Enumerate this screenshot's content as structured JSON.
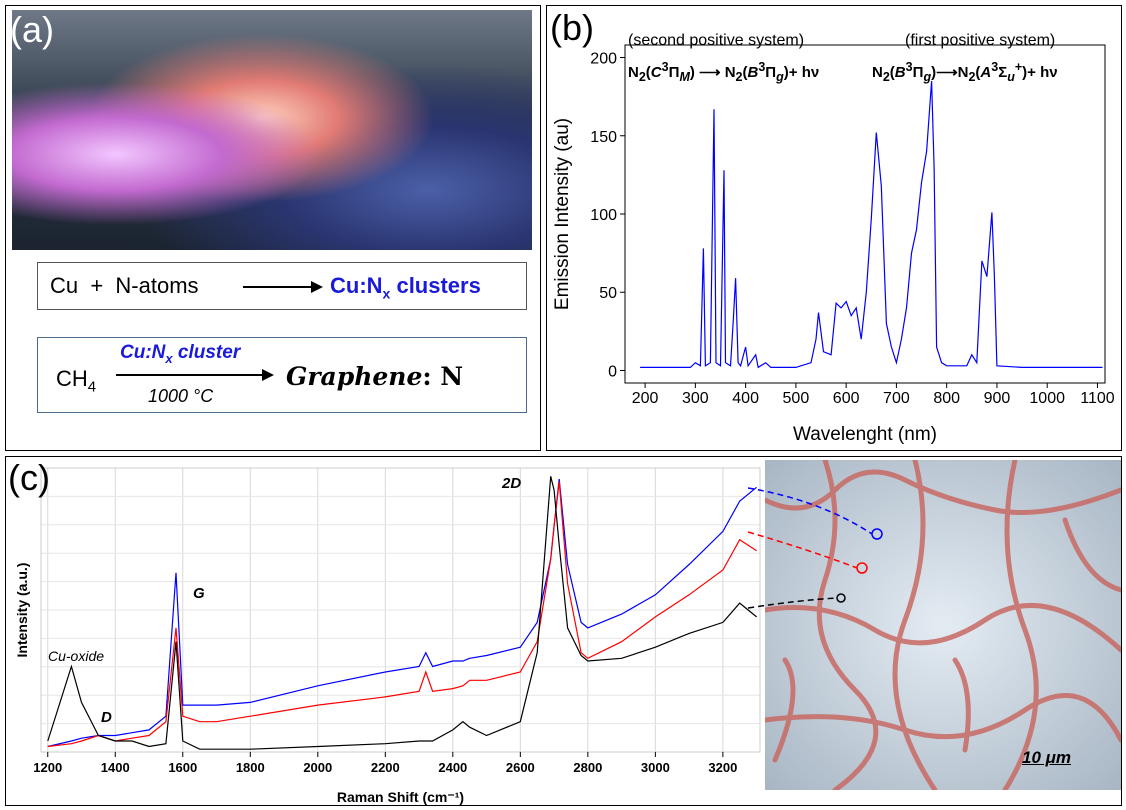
{
  "panel_labels": [
    "(a)",
    "(b)",
    "(c)"
  ],
  "reaction_1": {
    "reactants": "Cu  +  N-atoms",
    "product": [
      "Cu:N",
      "x",
      " clusters"
    ]
  },
  "reaction_2": {
    "reactant": [
      "CH",
      "4"
    ],
    "catalyst": [
      "Cu:N",
      "x",
      " cluster"
    ],
    "condition": "1000 °C",
    "product": [
      "Graphene",
      ": N"
    ]
  },
  "scale_bar": "10 μm",
  "chart_data": [
    {
      "type": "line",
      "xlabel": "Wavelenght (nm)",
      "ylabel": "Emission Intensity (au)",
      "annotations": [
        "(second positive system)",
        "(first positive system)"
      ],
      "equations": [
        [
          "N",
          "2",
          "(",
          "C",
          "3",
          "Π",
          "M",
          ")",
          "N",
          "2",
          "(",
          "B",
          "3",
          "Π",
          "g",
          ")+ hν"
        ],
        [
          "N",
          "2",
          "(",
          "B",
          "3",
          "Π",
          "g",
          ")",
          "N",
          "2",
          "(",
          "A",
          "3",
          "Σ",
          "u",
          "+",
          ")+ hν"
        ]
      ],
      "x": [
        190,
        290,
        300,
        310,
        316,
        320,
        330,
        337,
        341,
        350,
        357,
        360,
        370,
        375,
        380,
        385,
        390,
        400,
        405,
        420,
        425,
        440,
        450,
        500,
        530,
        540,
        545,
        555,
        570,
        580,
        590,
        600,
        610,
        620,
        630,
        640,
        650,
        660,
        670,
        680,
        690,
        700,
        710,
        720,
        730,
        740,
        750,
        760,
        770,
        775,
        780,
        790,
        800,
        840,
        850,
        860,
        870,
        880,
        890,
        895,
        900,
        950,
        1000,
        1050,
        1110
      ],
      "series": [
        {
          "color": "#0000ff",
          "values": [
            2,
            2,
            5,
            3,
            78,
            3,
            5,
            167,
            5,
            3,
            128,
            5,
            3,
            30,
            59,
            5,
            3,
            15,
            3,
            10,
            2,
            5,
            2,
            2,
            5,
            20,
            37,
            12,
            10,
            43,
            40,
            44,
            35,
            40,
            20,
            50,
            97,
            152,
            118,
            30,
            15,
            5,
            20,
            40,
            75,
            90,
            120,
            140,
            185,
            130,
            15,
            5,
            3,
            3,
            10,
            5,
            70,
            60,
            101,
            60,
            3,
            2,
            2,
            2,
            2
          ]
        }
      ],
      "xlim": [
        160,
        1115
      ],
      "ylim": [
        -8,
        208
      ],
      "xticks": [
        200,
        300,
        400,
        500,
        600,
        700,
        800,
        900,
        1000,
        1100
      ],
      "yticks": [
        0,
        50,
        100,
        150,
        200
      ]
    },
    {
      "type": "line",
      "xlabel": "Raman Shift (cm⁻¹)",
      "ylabel": "Intensity (a.u.)",
      "annotations": [
        "Cu-oxide",
        "D",
        "G",
        "2D"
      ],
      "x": [
        1200,
        1270,
        1300,
        1350,
        1400,
        1450,
        1500,
        1550,
        1580,
        1600,
        1650,
        1700,
        1800,
        2000,
        2200,
        2300,
        2320,
        2340,
        2400,
        2430,
        2450,
        2500,
        2600,
        2650,
        2690,
        2700,
        2715,
        2740,
        2780,
        2800,
        2900,
        3000,
        3100,
        3200,
        3250,
        3300
      ],
      "series": [
        {
          "color": "#0000ff",
          "values": [
            2,
            4,
            5,
            6,
            6,
            7,
            8,
            13,
            65,
            17,
            17,
            17,
            18,
            24,
            29,
            31,
            36,
            31,
            33,
            33,
            34,
            35,
            38,
            47,
            70,
            82,
            99,
            68,
            47,
            45,
            50,
            57,
            68,
            80,
            91,
            96
          ]
        },
        {
          "color": "#ff0000",
          "values": [
            2,
            3,
            4,
            6,
            4,
            5,
            6,
            11,
            45,
            13,
            11,
            11,
            13,
            17,
            20,
            22,
            29,
            22,
            23,
            24,
            26,
            26,
            29,
            40,
            70,
            82,
            98,
            61,
            36,
            34,
            40,
            49,
            57,
            66,
            77,
            73
          ]
        },
        {
          "color": "#000000",
          "values": [
            4,
            31,
            18,
            6,
            4,
            4,
            2,
            3,
            40,
            4,
            1,
            1,
            1,
            2,
            3,
            4,
            4,
            4,
            8,
            11,
            9,
            6,
            11,
            36,
            100,
            95,
            75,
            45,
            35,
            33,
            34,
            38,
            43,
            47,
            54,
            49
          ]
        }
      ],
      "xlim": [
        1180,
        3310
      ],
      "ylim": [
        0,
        103
      ],
      "xticks": [
        1200,
        1400,
        1600,
        1800,
        2000,
        2200,
        2400,
        2600,
        2800,
        3000,
        3200
      ],
      "grid": true
    }
  ]
}
